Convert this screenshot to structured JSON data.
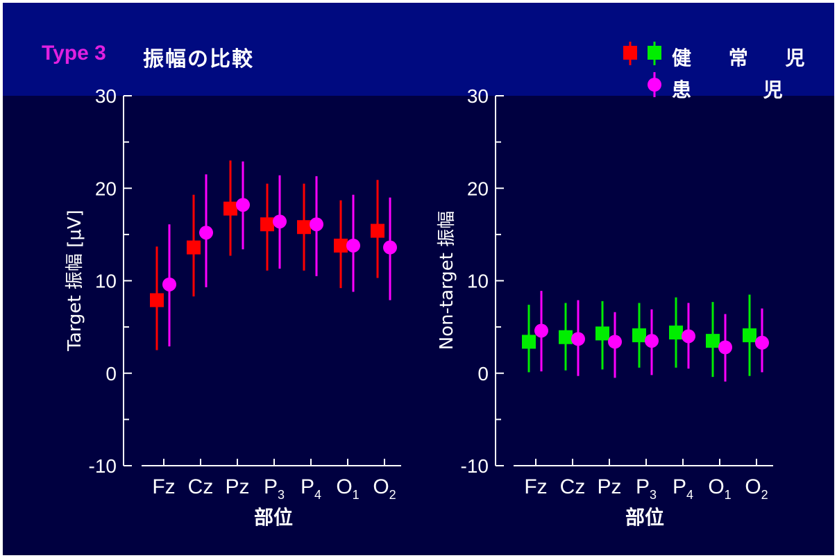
{
  "header": {
    "type_label": "Type 3",
    "title": "振幅の比較",
    "legend": [
      {
        "label": "健 常 児",
        "markers": [
          "red-square",
          "green-square"
        ]
      },
      {
        "label": "患　 児",
        "markers": [
          "magenta-circle"
        ]
      }
    ]
  },
  "colors": {
    "background": "#000040",
    "header_band": "#000a80",
    "red": "#ff0000",
    "green": "#00ee00",
    "magenta": "#ff00ff",
    "axis": "#ffffff",
    "type_label": "#e020e0"
  },
  "chart_data": [
    {
      "type": "scatter",
      "ylabel": "Target 振幅 [μV]",
      "xlabel": "部位",
      "categories": [
        "Fz",
        "Cz",
        "Pz",
        "P3",
        "P4",
        "O1",
        "O2"
      ],
      "category_labels": [
        {
          "base": "Fz",
          "sub": ""
        },
        {
          "base": "Cz",
          "sub": ""
        },
        {
          "base": "Pz",
          "sub": ""
        },
        {
          "base": "P",
          "sub": "3"
        },
        {
          "base": "P",
          "sub": "4"
        },
        {
          "base": "O",
          "sub": "1"
        },
        {
          "base": "O",
          "sub": "2"
        }
      ],
      "ylim": [
        -10,
        30
      ],
      "yticks": [
        -10,
        0,
        10,
        20,
        30
      ],
      "series": [
        {
          "name": "健常児",
          "marker": "square",
          "color": "#ff0000",
          "values": [
            7.9,
            13.6,
            17.8,
            16.1,
            15.8,
            13.8,
            15.4
          ],
          "err_low": [
            2.5,
            8.3,
            12.7,
            11.1,
            11.1,
            9.2,
            10.3
          ],
          "err_high": [
            13.7,
            19.3,
            23.0,
            20.5,
            20.5,
            18.7,
            20.9
          ]
        },
        {
          "name": "患児",
          "marker": "circle",
          "color": "#ff00ff",
          "values": [
            9.6,
            15.2,
            18.2,
            16.4,
            16.1,
            13.8,
            13.6
          ],
          "err_low": [
            2.9,
            9.3,
            13.4,
            11.3,
            10.5,
            8.8,
            7.9
          ],
          "err_high": [
            16.1,
            21.5,
            22.9,
            21.4,
            21.3,
            19.3,
            19.0
          ]
        }
      ]
    },
    {
      "type": "scatter",
      "ylabel": "Non-target 振幅",
      "xlabel": "部位",
      "categories": [
        "Fz",
        "Cz",
        "Pz",
        "P3",
        "P4",
        "O1",
        "O2"
      ],
      "category_labels": [
        {
          "base": "Fz",
          "sub": ""
        },
        {
          "base": "Cz",
          "sub": ""
        },
        {
          "base": "Pz",
          "sub": ""
        },
        {
          "base": "P",
          "sub": "3"
        },
        {
          "base": "P",
          "sub": "4"
        },
        {
          "base": "O",
          "sub": "1"
        },
        {
          "base": "O",
          "sub": "2"
        }
      ],
      "ylim": [
        -10,
        30
      ],
      "yticks": [
        -10,
        0,
        10,
        20,
        30
      ],
      "series": [
        {
          "name": "健常児",
          "marker": "square",
          "color": "#00ee00",
          "values": [
            3.4,
            3.9,
            4.3,
            4.1,
            4.4,
            3.5,
            4.1
          ],
          "err_low": [
            0.1,
            0.3,
            0.4,
            0.6,
            0.6,
            -0.4,
            -0.3
          ],
          "err_high": [
            7.4,
            7.6,
            7.8,
            7.6,
            8.2,
            7.7,
            8.5
          ]
        },
        {
          "name": "患児",
          "marker": "circle",
          "color": "#ff00ff",
          "values": [
            4.6,
            3.7,
            3.4,
            3.5,
            4.0,
            2.8,
            3.3
          ],
          "err_low": [
            0.2,
            -0.3,
            -0.5,
            -0.2,
            0.5,
            -0.9,
            0.1
          ],
          "err_high": [
            8.9,
            7.9,
            6.6,
            6.9,
            7.6,
            6.4,
            7.0
          ]
        }
      ]
    }
  ]
}
